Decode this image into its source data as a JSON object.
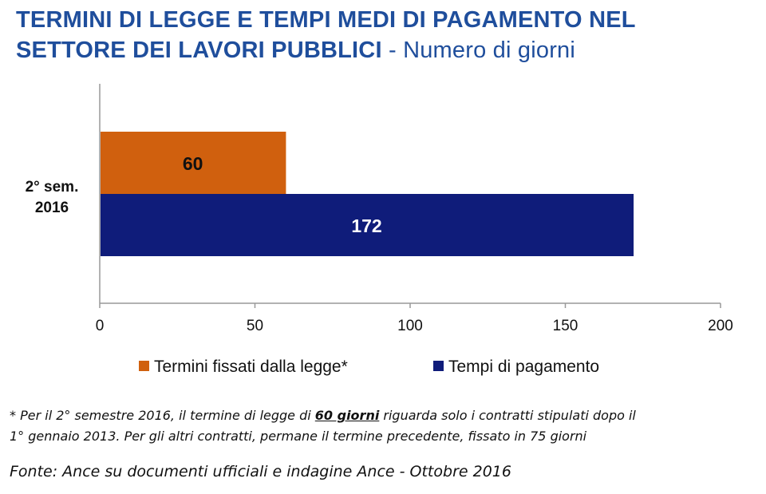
{
  "title": {
    "main_line1": "TERMINI DI LEGGE E TEMPI MEDI DI PAGAMENTO NEL",
    "main_line2": "SETTORE DEI LAVORI PUBBLICI",
    "subtitle": " - Numero di giorni"
  },
  "colors": {
    "title": "#1f4e9c",
    "termini": "#d0600e",
    "tempi": "#0f1c7a"
  },
  "chart_data": {
    "type": "bar",
    "orientation": "horizontal",
    "categories": [
      "2° sem. 2016"
    ],
    "category_label_lines": [
      "2° sem.",
      "2016"
    ],
    "series": [
      {
        "name": "Termini fissati dalla legge*",
        "values": [
          60
        ],
        "color": "#d0600e"
      },
      {
        "name": "Tempi di pagamento",
        "values": [
          172
        ],
        "color": "#0f1c7a"
      }
    ],
    "xlim": [
      0,
      200
    ],
    "xticks": [
      0,
      50,
      100,
      150,
      200
    ],
    "legend_position": "bottom",
    "grid": false
  },
  "footnote": {
    "part1": "* Per il 2° semestre 2016, il termine di legge di ",
    "highlight": "60 giorni",
    "part2": "  riguarda solo i contratti stipulati dopo il",
    "line2": "1° gennaio 2013. Per gli altri contratti, permane il termine precedente, fissato in 75 giorni"
  },
  "source": "Fonte: Ance su documenti ufficiali e indagine Ance - Ottobre 2016"
}
